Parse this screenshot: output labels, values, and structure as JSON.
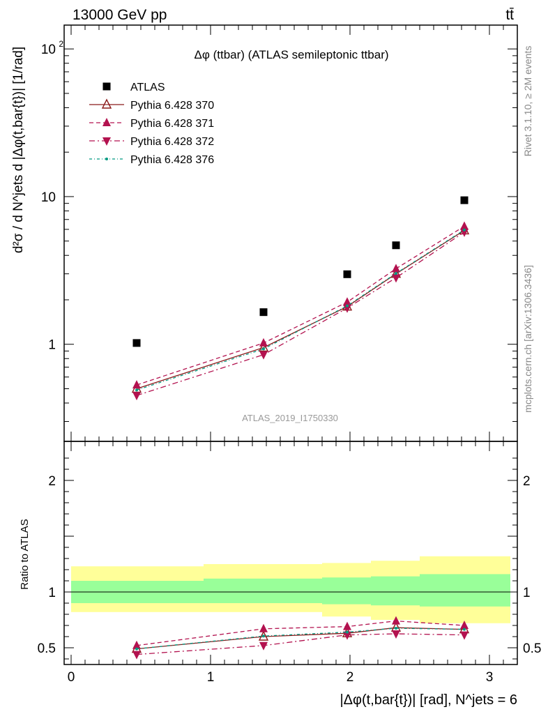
{
  "header": {
    "energy_label": "13000 GeV pp",
    "process_label": "tt̄"
  },
  "side_labels": {
    "rivet": "Rivet 3.1.10, ≥ 2M events",
    "source": "mcplots.cern.ch [arXiv:1306.3436]"
  },
  "chart_data": [
    {
      "type": "scatter",
      "title": "Δφ (ttbar) (ATLAS semileptonic ttbar)",
      "watermark": "ATLAS_2019_I1750330",
      "ylabel": "d²σ / d N^jets d |Δφ(t,bar{t})| [1/rad]",
      "yscale": "log",
      "xlim": [
        -0.05,
        3.2
      ],
      "ylim": [
        0.22,
        145
      ],
      "y_tick_labels": [
        "1",
        "10",
        "10²"
      ],
      "legend_position": "top-left",
      "x": [
        0.47,
        1.38,
        1.98,
        2.33,
        2.82
      ],
      "series": [
        {
          "name": "ATLAS",
          "color": "#000000",
          "marker": "square",
          "values": [
            1.02,
            1.65,
            2.98,
            4.68,
            9.45
          ]
        },
        {
          "name": "Pythia 6.428 370",
          "color": "#8b1a1a",
          "marker": "open-triangle-up",
          "line": "solid",
          "values": [
            0.5,
            0.95,
            1.8,
            3.0,
            5.9
          ]
        },
        {
          "name": "Pythia 6.428 371",
          "color": "#b3124f",
          "marker": "triangle-up",
          "line": "dashed",
          "values": [
            0.53,
            1.02,
            1.93,
            3.25,
            6.3
          ]
        },
        {
          "name": "Pythia 6.428 372",
          "color": "#b3124f",
          "marker": "triangle-down",
          "line": "dashdot",
          "values": [
            0.45,
            0.85,
            1.76,
            2.82,
            5.75
          ]
        },
        {
          "name": "Pythia 6.428 376",
          "color": "#009980",
          "marker": "dot",
          "line": "dashdot-fine",
          "values": [
            0.49,
            0.93,
            1.82,
            3.02,
            5.95
          ]
        }
      ]
    },
    {
      "type": "line",
      "ylabel": "Ratio to ATLAS",
      "xlabel": "|Δφ(t,bar{t})| [rad], N^jets = 6",
      "xlim": [
        -0.05,
        3.2
      ],
      "ylim": [
        0.35,
        2.35
      ],
      "x_tick_labels": [
        "0",
        "1",
        "2",
        "3"
      ],
      "y_tick_labels": [
        "0.5",
        "1",
        "2"
      ],
      "band_edges": [
        0,
        0.95,
        1.8,
        2.15,
        2.5,
        3.15
      ],
      "band_inner": {
        "color": "#99ff99",
        "lo": [
          0.9,
          0.9,
          0.89,
          0.88,
          0.87
        ],
        "hi": [
          1.1,
          1.12,
          1.13,
          1.14,
          1.16
        ]
      },
      "band_outer": {
        "color": "#ffff99",
        "lo": [
          0.82,
          0.82,
          0.78,
          0.75,
          0.72
        ],
        "hi": [
          1.23,
          1.25,
          1.26,
          1.28,
          1.32
        ]
      },
      "x": [
        0.47,
        1.38,
        1.98,
        2.33,
        2.82
      ],
      "series": [
        {
          "name": "Pythia 6.428 370",
          "color": "#8b1a1a",
          "marker": "open-triangle-up",
          "line": "solid",
          "values": [
            0.49,
            0.6,
            0.63,
            0.68,
            0.665
          ]
        },
        {
          "name": "Pythia 6.428 371",
          "color": "#b3124f",
          "marker": "triangle-up",
          "line": "dashed",
          "values": [
            0.52,
            0.67,
            0.69,
            0.74,
            0.7
          ]
        },
        {
          "name": "Pythia 6.428 372",
          "color": "#b3124f",
          "marker": "triangle-down",
          "line": "dashdot",
          "values": [
            0.44,
            0.52,
            0.615,
            0.625,
            0.615
          ]
        },
        {
          "name": "Pythia 6.428 376",
          "color": "#009980",
          "marker": "dot",
          "line": "dashdot-fine",
          "values": [
            0.49,
            0.605,
            0.64,
            0.675,
            0.665
          ]
        }
      ]
    }
  ]
}
